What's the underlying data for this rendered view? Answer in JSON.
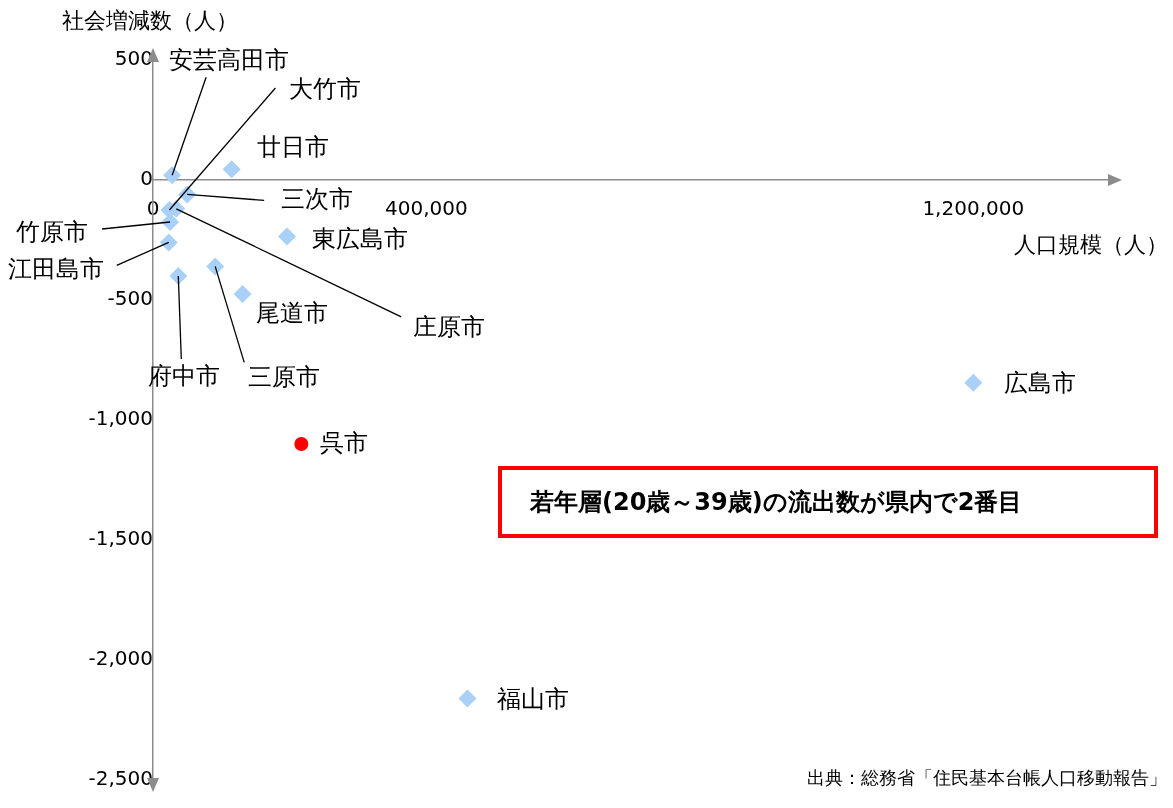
{
  "chart_data": {
    "type": "scatter",
    "xlabel": "人口規模（人）",
    "ylabel": "社会増減数（人）",
    "xlim": [
      0,
      1400000
    ],
    "xticks": [
      0,
      {
        "value": 400000,
        "label": "400,000"
      },
      {
        "value": 1200000,
        "label": "1,200,000"
      }
    ],
    "ylim": [
      -2500,
      500
    ],
    "yticks": [
      {
        "value": -2500,
        "label": "-2,500"
      },
      {
        "value": -2000,
        "label": "-2,000"
      },
      {
        "value": -1500,
        "label": "-1,500"
      },
      {
        "value": -1000,
        "label": "-1,000"
      },
      -500,
      0,
      500
    ],
    "grid": false,
    "legend": false,
    "series": [
      {
        "name": "安芸高田市",
        "color": "#a9d1f7",
        "marker": "diamond",
        "x": [
          28000
        ],
        "values": [
          20
        ]
      },
      {
        "name": "大竹市",
        "color": "#a9d1f7",
        "marker": "diamond",
        "x": [
          24000
        ],
        "values": [
          -125
        ]
      },
      {
        "name": "廿日市",
        "color": "#a9d1f7",
        "marker": "diamond",
        "x": [
          115000
        ],
        "values": [
          45
        ]
      },
      {
        "name": "三次市",
        "color": "#a9d1f7",
        "marker": "diamond",
        "x": [
          50000
        ],
        "values": [
          -60
        ]
      },
      {
        "name": "竹原市",
        "color": "#a9d1f7",
        "marker": "diamond",
        "x": [
          25000
        ],
        "values": [
          -175
        ]
      },
      {
        "name": "江田島市",
        "color": "#a9d1f7",
        "marker": "diamond",
        "x": [
          23000
        ],
        "values": [
          -260
        ]
      },
      {
        "name": "庄原市",
        "color": "#a9d1f7",
        "marker": "diamond",
        "x": [
          34000
        ],
        "values": [
          -120
        ]
      },
      {
        "name": "府中市",
        "color": "#a9d1f7",
        "marker": "diamond",
        "x": [
          37000
        ],
        "values": [
          -400
        ]
      },
      {
        "name": "三原市",
        "color": "#a9d1f7",
        "marker": "diamond",
        "x": [
          91000
        ],
        "values": [
          -360
        ]
      },
      {
        "name": "尾道市",
        "color": "#a9d1f7",
        "marker": "diamond",
        "x": [
          131000
        ],
        "values": [
          -475
        ]
      },
      {
        "name": "東広島市",
        "color": "#a9d1f7",
        "marker": "diamond",
        "x": [
          196000
        ],
        "values": [
          -235
        ]
      },
      {
        "name": "呉市",
        "color": "#ff0000",
        "marker": "circle",
        "x": [
          217000
        ],
        "values": [
          -1100
        ]
      },
      {
        "name": "広島市",
        "color": "#a9d1f7",
        "marker": "diamond",
        "x": [
          1200000
        ],
        "values": [
          -845
        ]
      },
      {
        "name": "福山市",
        "color": "#a9d1f7",
        "marker": "diamond",
        "x": [
          460000
        ],
        "values": [
          -2160
        ]
      }
    ],
    "annotations": [
      "若年層(20歳～39歳)の流出数が県内で2番目",
      "出典：総務省「住民基本台帳人口移動報告」"
    ]
  }
}
